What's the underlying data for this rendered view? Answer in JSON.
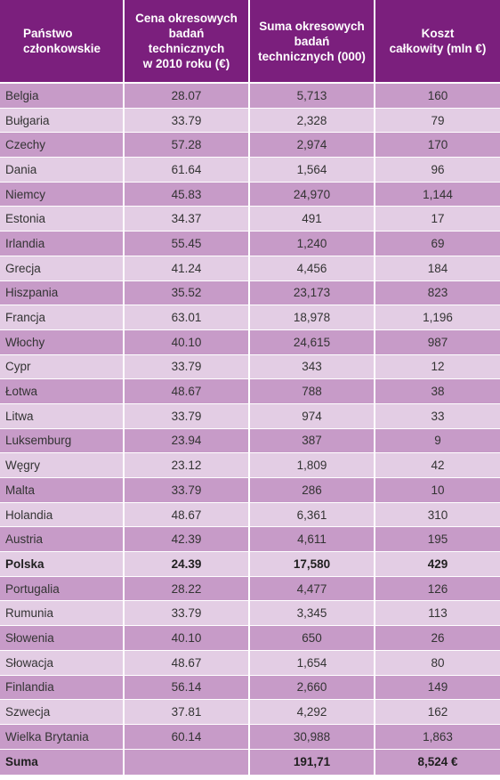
{
  "headers": {
    "country": [
      "Państwo",
      "członkowskie"
    ],
    "price": [
      "Cena okresowych",
      "badań",
      "technicznych",
      "w 2010 roku (€)"
    ],
    "count": [
      "Suma okresowych",
      "badań",
      "technicznych (000)"
    ],
    "cost": [
      "Koszt",
      "całkowity (mln €)"
    ]
  },
  "rows": [
    {
      "country": "Belgia",
      "price": "28.07",
      "count": "5,713",
      "cost": "160"
    },
    {
      "country": "Bułgaria",
      "price": "33.79",
      "count": "2,328",
      "cost": "79"
    },
    {
      "country": "Czechy",
      "price": "57.28",
      "count": "2,974",
      "cost": "170"
    },
    {
      "country": "Dania",
      "price": "61.64",
      "count": "1,564",
      "cost": "96"
    },
    {
      "country": "Niemcy",
      "price": "45.83",
      "count": "24,970",
      "cost": "1,144"
    },
    {
      "country": "Estonia",
      "price": "34.37",
      "count": "491",
      "cost": "17"
    },
    {
      "country": "Irlandia",
      "price": "55.45",
      "count": "1,240",
      "cost": "69"
    },
    {
      "country": "Grecja",
      "price": "41.24",
      "count": "4,456",
      "cost": "184"
    },
    {
      "country": "Hiszpania",
      "price": "35.52",
      "count": "23,173",
      "cost": "823"
    },
    {
      "country": "Francja",
      "price": "63.01",
      "count": "18,978",
      "cost": "1,196"
    },
    {
      "country": "Włochy",
      "price": "40.10",
      "count": "24,615",
      "cost": "987"
    },
    {
      "country": "Cypr",
      "price": "33.79",
      "count": "343",
      "cost": "12"
    },
    {
      "country": "Łotwa",
      "price": "48.67",
      "count": "788",
      "cost": "38"
    },
    {
      "country": "Litwa",
      "price": "33.79",
      "count": "974",
      "cost": "33"
    },
    {
      "country": "Luksemburg",
      "price": "23.94",
      "count": "387",
      "cost": "9"
    },
    {
      "country": "Węgry",
      "price": "23.12",
      "count": "1,809",
      "cost": "42"
    },
    {
      "country": "Malta",
      "price": "33.79",
      "count": "286",
      "cost": "10"
    },
    {
      "country": "Holandia",
      "price": "48.67",
      "count": "6,361",
      "cost": "310"
    },
    {
      "country": "Austria",
      "price": "42.39",
      "count": "4,611",
      "cost": "195"
    },
    {
      "country": "Polska",
      "price": "24.39",
      "count": "17,580",
      "cost": "429",
      "bold": true
    },
    {
      "country": "Portugalia",
      "price": "28.22",
      "count": "4,477",
      "cost": "126"
    },
    {
      "country": "Rumunia",
      "price": "33.79",
      "count": "3,345",
      "cost": "113"
    },
    {
      "country": "Słowenia",
      "price": "40.10",
      "count": "650",
      "cost": "26"
    },
    {
      "country": "Słowacja",
      "price": "48.67",
      "count": "1,654",
      "cost": "80"
    },
    {
      "country": "Finlandia",
      "price": "56.14",
      "count": "2,660",
      "cost": "149"
    },
    {
      "country": "Szwecja",
      "price": "37.81",
      "count": "4,292",
      "cost": "162"
    },
    {
      "country": "Wielka Brytania",
      "price": "60.14",
      "count": "30,988",
      "cost": "1,863"
    }
  ],
  "total": {
    "country": "Suma",
    "price": "",
    "count": "191,71",
    "cost": "8,524 €"
  },
  "colors": {
    "header": "#7b1f7d",
    "row_dark": "#c79bc8",
    "row_light": "#e3cde4"
  }
}
